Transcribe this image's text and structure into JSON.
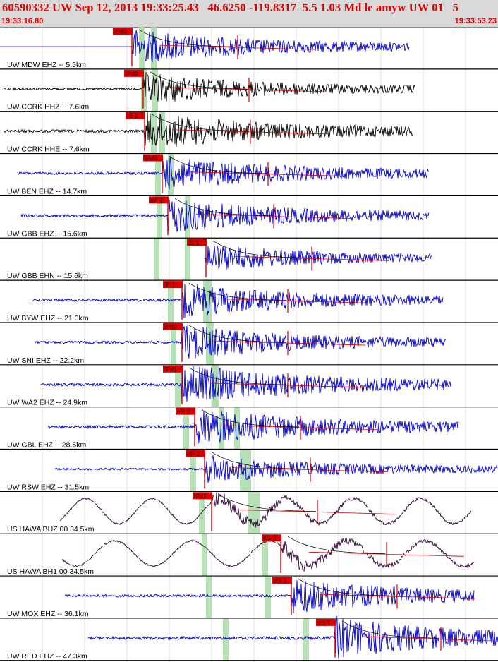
{
  "header": {
    "title": "60590332 UW Sep 12, 2013 19:33:25.43   46.6250 -119.8317  5.5 1.03 Md le amyw UW 01   5",
    "start_time": "19:33:16.80",
    "end_time": "19:33:53.23"
  },
  "colors": {
    "header_bg": "#d9d9d9",
    "header_text": "#dd0000",
    "trace_blue": "#0000cc",
    "trace_black": "#000000",
    "trace_purple": "#2b0033",
    "pick_red": "#dd0000",
    "highlight_green": "#a8dca8"
  },
  "chart_data": {
    "type": "seismogram",
    "x_range": [
      "19:33:16.80",
      "19:33:53.23"
    ],
    "traces": [
      {
        "label": "UW MDW EHZ -- 5.5km",
        "color": "trace_blue",
        "pick": "iPd0",
        "amp": 1.0
      },
      {
        "label": "UW CCRK HHZ -- 7.6km",
        "color": "trace_black",
        "pick": "iPd0",
        "amp": 0.9
      },
      {
        "label": "UW CCRK HHE -- 7.6km",
        "color": "trace_black",
        "pick": "iS 1",
        "amp": 1.1
      },
      {
        "label": "UW BEN EHZ -- 14.7km",
        "color": "trace_blue",
        "pick": "iPd0",
        "amp": 1.0
      },
      {
        "label": "UW GBB EHZ -- 15.6km",
        "color": "trace_blue",
        "pick": "eP 2",
        "amp": 1.0
      },
      {
        "label": "UW GBB EHN -- 15.6km",
        "color": "trace_blue",
        "pick": "iS 1",
        "amp": 0.8
      },
      {
        "label": "UW BYW EHZ -- 21.0km",
        "color": "trace_blue",
        "pick": "iP 1",
        "amp": 1.0
      },
      {
        "label": "UW SNI EHZ -- 22.2km",
        "color": "trace_blue",
        "pick": "iPd0",
        "amp": 1.0
      },
      {
        "label": "UW WA2 EHZ -- 24.9km",
        "color": "trace_blue",
        "pick": "iPd1",
        "amp": 1.2
      },
      {
        "label": "UW GBL EHZ -- 28.5km",
        "color": "trace_blue",
        "pick": "eP 2",
        "amp": 1.1
      },
      {
        "label": "UW RSW EHZ -- 31.5km",
        "color": "trace_blue",
        "pick": "eP 2",
        "amp": 0.8
      },
      {
        "label": "US HAWA BHZ 00 34.5km",
        "color": "trace_purple",
        "pick": "iPd1",
        "amp": 1.0
      },
      {
        "label": "US HAWA BH1 00 34.5km",
        "color": "trace_purple",
        "pick": "eS 2",
        "amp": 1.0
      },
      {
        "label": "UW MOX EHZ -- 36.1km",
        "color": "trace_blue",
        "pick": "eS 2",
        "amp": 1.0
      },
      {
        "label": "UW RED EHZ -- 47.3km",
        "color": "trace_blue",
        "pick": "eS 1",
        "amp": 1.2
      }
    ]
  }
}
